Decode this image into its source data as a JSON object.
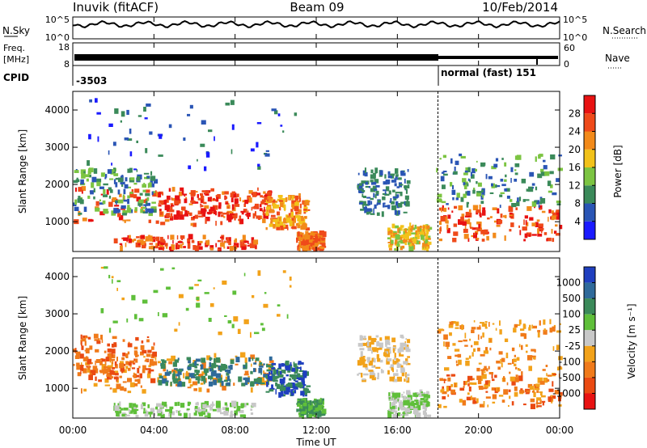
{
  "header": {
    "station": "Inuvik (fitACF)",
    "beam": "Beam 09",
    "date": "10/Feb/2014"
  },
  "top_panels": {
    "nsky_label": "N.Sky",
    "nsky_ticks": [
      "10^5",
      "10^0"
    ],
    "nsearch_label": "N.Search",
    "freq_label_1": "Freq.",
    "freq_label_2": "[MHz]",
    "freq_ticks": [
      "18",
      "8"
    ],
    "nave_label": "Nave",
    "nave_ticks": [
      "60",
      "0"
    ],
    "cpid_label": "CPID",
    "cpid_value_1": "-3503",
    "cpid_value_2": "normal (fast) 151"
  },
  "x_axis": {
    "label": "Time UT",
    "ticks": [
      "00:00",
      "04:00",
      "08:00",
      "12:00",
      "16:00",
      "20:00",
      "00:00"
    ]
  },
  "chart_data": [
    {
      "type": "heatmap",
      "name": "power",
      "ylabel": "Slant Range [km]",
      "y_ticks": [
        1000,
        2000,
        3000,
        4000
      ],
      "ylim": [
        200,
        4500
      ],
      "xlim_hours": [
        0,
        24
      ],
      "colorbar_label": "Power [dB]",
      "colorbar_ticks": [
        "4",
        "8",
        "12",
        "16",
        "20",
        "24",
        "28"
      ],
      "colors": [
        "#1a1aff",
        "#2a55b5",
        "#3b8a5a",
        "#7cc442",
        "#f2c21a",
        "#f28a1a",
        "#ef4a1a",
        "#e81212"
      ]
    },
    {
      "type": "heatmap",
      "name": "velocity",
      "ylabel": "Slant Range [km]",
      "y_ticks": [
        1000,
        2000,
        3000,
        4000
      ],
      "ylim": [
        200,
        4500
      ],
      "xlim_hours": [
        0,
        24
      ],
      "colorbar_label": "Velocity [m s⁻¹]",
      "colorbar_ticks": [
        "1000",
        "500",
        "100",
        "25",
        "-25",
        "-100",
        "-500",
        "-1000"
      ],
      "colors": [
        "#1f3fbf",
        "#2f6a9a",
        "#3b8a5a",
        "#5fbf3a",
        "#c8c8c8",
        "#f2a21a",
        "#f07a1a",
        "#ea4a12",
        "#e81212"
      ]
    }
  ]
}
